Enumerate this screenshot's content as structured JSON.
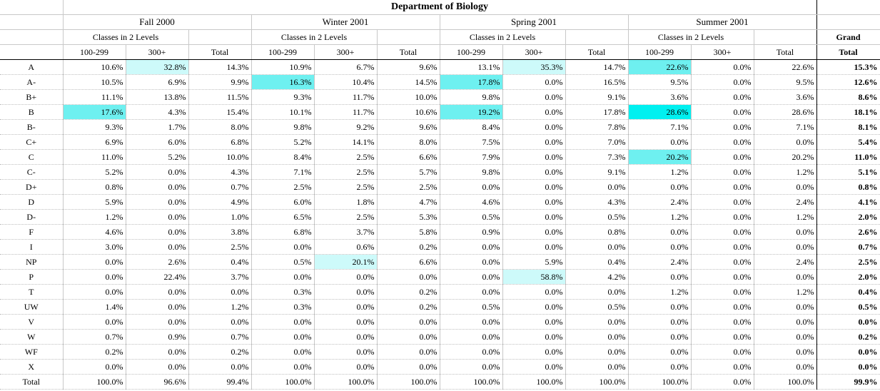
{
  "title": "Department of Biology",
  "terms": [
    "Fall 2000",
    "Winter 2001",
    "Spring 2001",
    "Summer 2001"
  ],
  "subheader": "Classes in 2 Levels",
  "col_headers": {
    "lower": "100-299",
    "upper": "300+",
    "total": "Total"
  },
  "grand": {
    "line1": "Grand",
    "line2": "Total"
  },
  "rows": [
    {
      "label": "A",
      "v": [
        "10.6%",
        "32.8%",
        "14.3%",
        "10.9%",
        "6.7%",
        "9.6%",
        "13.1%",
        "35.3%",
        "14.7%",
        "22.6%",
        "0.0%",
        "22.6%"
      ],
      "grand": "15.3%"
    },
    {
      "label": "A-",
      "v": [
        "10.5%",
        "6.9%",
        "9.9%",
        "16.3%",
        "10.4%",
        "14.5%",
        "17.8%",
        "0.0%",
        "16.5%",
        "9.5%",
        "0.0%",
        "9.5%"
      ],
      "grand": "12.6%"
    },
    {
      "label": "B+",
      "v": [
        "11.1%",
        "13.8%",
        "11.5%",
        "9.3%",
        "11.7%",
        "10.0%",
        "9.8%",
        "0.0%",
        "9.1%",
        "3.6%",
        "0.0%",
        "3.6%"
      ],
      "grand": "8.6%"
    },
    {
      "label": "B",
      "v": [
        "17.6%",
        "4.3%",
        "15.4%",
        "10.1%",
        "11.7%",
        "10.6%",
        "19.2%",
        "0.0%",
        "17.8%",
        "28.6%",
        "0.0%",
        "28.6%"
      ],
      "grand": "18.1%"
    },
    {
      "label": "B-",
      "v": [
        "9.3%",
        "1.7%",
        "8.0%",
        "9.8%",
        "9.2%",
        "9.6%",
        "8.4%",
        "0.0%",
        "7.8%",
        "7.1%",
        "0.0%",
        "7.1%"
      ],
      "grand": "8.1%"
    },
    {
      "label": "C+",
      "v": [
        "6.9%",
        "6.0%",
        "6.8%",
        "5.2%",
        "14.1%",
        "8.0%",
        "7.5%",
        "0.0%",
        "7.0%",
        "0.0%",
        "0.0%",
        "0.0%"
      ],
      "grand": "5.4%"
    },
    {
      "label": "C",
      "v": [
        "11.0%",
        "5.2%",
        "10.0%",
        "8.4%",
        "2.5%",
        "6.6%",
        "7.9%",
        "0.0%",
        "7.3%",
        "20.2%",
        "0.0%",
        "20.2%"
      ],
      "grand": "11.0%"
    },
    {
      "label": "C-",
      "v": [
        "5.2%",
        "0.0%",
        "4.3%",
        "7.1%",
        "2.5%",
        "5.7%",
        "9.8%",
        "0.0%",
        "9.1%",
        "1.2%",
        "0.0%",
        "1.2%"
      ],
      "grand": "5.1%"
    },
    {
      "label": "D+",
      "v": [
        "0.8%",
        "0.0%",
        "0.7%",
        "2.5%",
        "2.5%",
        "2.5%",
        "0.0%",
        "0.0%",
        "0.0%",
        "0.0%",
        "0.0%",
        "0.0%"
      ],
      "grand": "0.8%"
    },
    {
      "label": "D",
      "v": [
        "5.9%",
        "0.0%",
        "4.9%",
        "6.0%",
        "1.8%",
        "4.7%",
        "4.6%",
        "0.0%",
        "4.3%",
        "2.4%",
        "0.0%",
        "2.4%"
      ],
      "grand": "4.1%"
    },
    {
      "label": "D-",
      "v": [
        "1.2%",
        "0.0%",
        "1.0%",
        "6.5%",
        "2.5%",
        "5.3%",
        "0.5%",
        "0.0%",
        "0.5%",
        "1.2%",
        "0.0%",
        "1.2%"
      ],
      "grand": "2.0%"
    },
    {
      "label": "F",
      "v": [
        "4.6%",
        "0.0%",
        "3.8%",
        "6.8%",
        "3.7%",
        "5.8%",
        "0.9%",
        "0.0%",
        "0.8%",
        "0.0%",
        "0.0%",
        "0.0%"
      ],
      "grand": "2.6%"
    },
    {
      "label": "I",
      "v": [
        "3.0%",
        "0.0%",
        "2.5%",
        "0.0%",
        "0.6%",
        "0.2%",
        "0.0%",
        "0.0%",
        "0.0%",
        "0.0%",
        "0.0%",
        "0.0%"
      ],
      "grand": "0.7%"
    },
    {
      "label": "NP",
      "v": [
        "0.0%",
        "2.6%",
        "0.4%",
        "0.5%",
        "20.1%",
        "6.6%",
        "0.0%",
        "5.9%",
        "0.4%",
        "2.4%",
        "0.0%",
        "2.4%"
      ],
      "grand": "2.5%"
    },
    {
      "label": "P",
      "v": [
        "0.0%",
        "22.4%",
        "3.7%",
        "0.0%",
        "0.0%",
        "0.0%",
        "0.0%",
        "58.8%",
        "4.2%",
        "0.0%",
        "0.0%",
        "0.0%"
      ],
      "grand": "2.0%"
    },
    {
      "label": "T",
      "v": [
        "0.0%",
        "0.0%",
        "0.0%",
        "0.3%",
        "0.0%",
        "0.2%",
        "0.0%",
        "0.0%",
        "0.0%",
        "1.2%",
        "0.0%",
        "1.2%"
      ],
      "grand": "0.4%"
    },
    {
      "label": "UW",
      "v": [
        "1.4%",
        "0.0%",
        "1.2%",
        "0.3%",
        "0.0%",
        "0.2%",
        "0.5%",
        "0.0%",
        "0.5%",
        "0.0%",
        "0.0%",
        "0.0%"
      ],
      "grand": "0.5%"
    },
    {
      "label": "V",
      "v": [
        "0.0%",
        "0.0%",
        "0.0%",
        "0.0%",
        "0.0%",
        "0.0%",
        "0.0%",
        "0.0%",
        "0.0%",
        "0.0%",
        "0.0%",
        "0.0%"
      ],
      "grand": "0.0%"
    },
    {
      "label": "W",
      "v": [
        "0.7%",
        "0.9%",
        "0.7%",
        "0.0%",
        "0.0%",
        "0.0%",
        "0.0%",
        "0.0%",
        "0.0%",
        "0.0%",
        "0.0%",
        "0.0%"
      ],
      "grand": "0.2%"
    },
    {
      "label": "WF",
      "v": [
        "0.2%",
        "0.0%",
        "0.2%",
        "0.0%",
        "0.0%",
        "0.0%",
        "0.0%",
        "0.0%",
        "0.0%",
        "0.0%",
        "0.0%",
        "0.0%"
      ],
      "grand": "0.0%"
    },
    {
      "label": "X",
      "v": [
        "0.0%",
        "0.0%",
        "0.0%",
        "0.0%",
        "0.0%",
        "0.0%",
        "0.0%",
        "0.0%",
        "0.0%",
        "0.0%",
        "0.0%",
        "0.0%"
      ],
      "grand": "0.0%"
    },
    {
      "label": "Total",
      "v": [
        "100.0%",
        "96.6%",
        "99.4%",
        "100.0%",
        "100.0%",
        "100.0%",
        "100.0%",
        "100.0%",
        "100.0%",
        "100.0%",
        "0.0%",
        "100.0%"
      ],
      "grand": "99.9%"
    }
  ],
  "highlight_colors": {
    "light": "#cdfafa",
    "medium": "#6ef0f0",
    "strong": "#00f0f0"
  },
  "highlights": [
    {
      "row": 0,
      "col": 1,
      "level": "light"
    },
    {
      "row": 0,
      "col": 7,
      "level": "light"
    },
    {
      "row": 0,
      "col": 9,
      "level": "medium"
    },
    {
      "row": 1,
      "col": 3,
      "level": "medium"
    },
    {
      "row": 1,
      "col": 6,
      "level": "medium"
    },
    {
      "row": 3,
      "col": 0,
      "level": "medium"
    },
    {
      "row": 3,
      "col": 6,
      "level": "medium"
    },
    {
      "row": 3,
      "col": 9,
      "level": "strong"
    },
    {
      "row": 6,
      "col": 9,
      "level": "medium"
    },
    {
      "row": 13,
      "col": 4,
      "level": "light"
    },
    {
      "row": 14,
      "col": 7,
      "level": "light"
    }
  ]
}
